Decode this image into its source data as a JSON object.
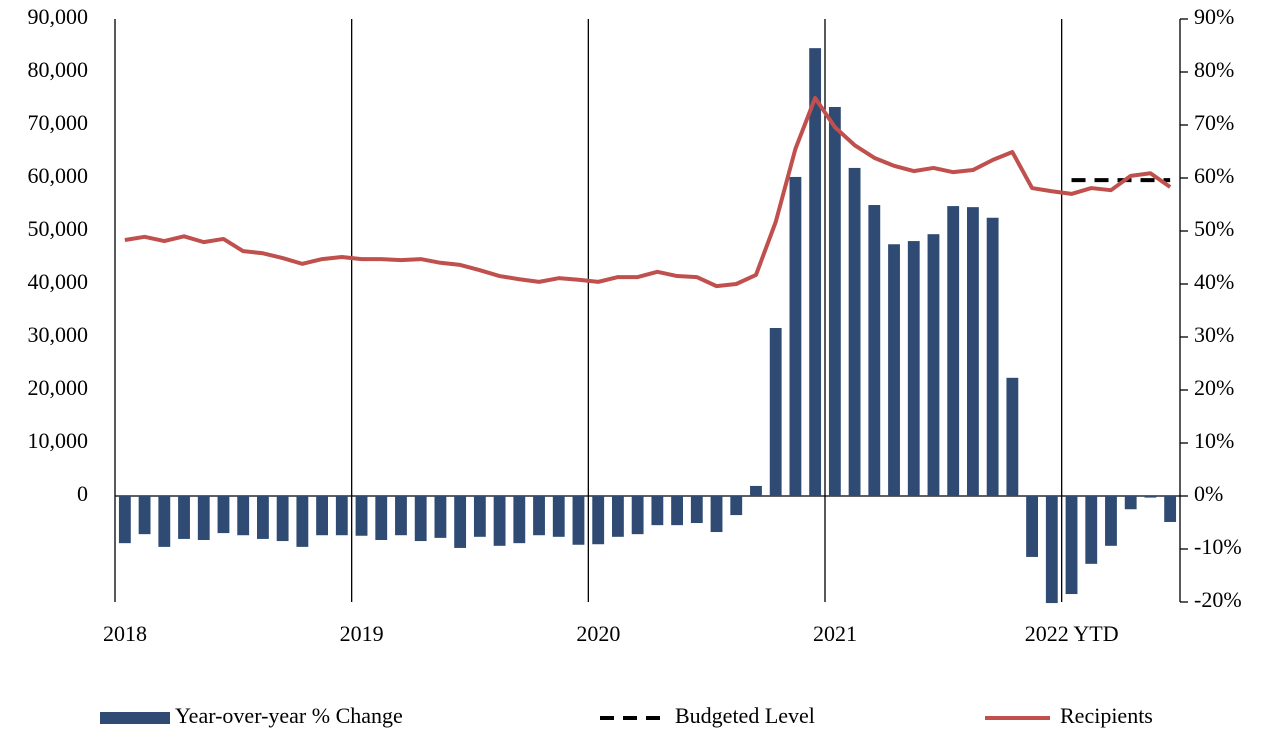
{
  "chart_data": {
    "type": "bar-line",
    "xticks": [
      {
        "value": 0,
        "label": "2018"
      },
      {
        "value": 12,
        "label": "2019"
      },
      {
        "value": 24,
        "label": "2020"
      },
      {
        "value": 36,
        "label": "2021"
      },
      {
        "value": 48,
        "label": "2022 YTD"
      }
    ],
    "xlim": [
      0,
      54
    ],
    "ylim": [
      -20000,
      90000
    ],
    "yticks": [
      0,
      {
        "value": 10000,
        "label": "10,000"
      },
      {
        "value": 20000,
        "label": "20,000"
      },
      {
        "value": 30000,
        "label": "30,000"
      },
      {
        "value": 40000,
        "label": "40,000"
      },
      {
        "value": 50000,
        "label": "50,000"
      },
      {
        "value": 60000,
        "label": "60,000"
      },
      {
        "value": 70000,
        "label": "70,000"
      },
      {
        "value": 80000,
        "label": "80,000"
      },
      {
        "value": 90000,
        "label": "90,000"
      }
    ],
    "y2lim": [
      -20,
      90
    ],
    "y2ticks": [
      {
        "value": -20,
        "label": "-20%"
      },
      {
        "value": -10,
        "label": "-10%"
      },
      {
        "value": 0,
        "label": "0%"
      },
      {
        "value": 10,
        "label": "10%"
      },
      {
        "value": 20,
        "label": "20%"
      },
      {
        "value": 30,
        "label": "30%"
      },
      {
        "value": 40,
        "label": "40%"
      },
      {
        "value": 50,
        "label": "50%"
      },
      {
        "value": 60,
        "label": "60%"
      },
      {
        "value": 70,
        "label": "70%"
      },
      {
        "value": 80,
        "label": "80%"
      },
      {
        "value": 90,
        "label": "90%"
      }
    ],
    "series": [
      {
        "name": "Year-over-year % Change",
        "kind": "bar",
        "axis": "y2",
        "color": "#2f4b73",
        "values": [
          -8.9,
          -7.2,
          -9.6,
          -8.1,
          -8.3,
          -7.0,
          -7.4,
          -8.1,
          -8.5,
          -9.6,
          -7.4,
          -7.4,
          -7.5,
          -8.3,
          -7.4,
          -8.5,
          -7.9,
          -9.8,
          -7.7,
          -9.4,
          -8.9,
          -7.4,
          -7.7,
          -9.2,
          -9.1,
          -7.7,
          -7.2,
          -5.5,
          -5.5,
          -5.1,
          -6.8,
          -3.6,
          1.9,
          31.7,
          60.2,
          84.5,
          73.4,
          61.9,
          54.9,
          47.5,
          48.1,
          49.4,
          54.7,
          54.5,
          52.5,
          22.3,
          -11.5,
          -20.2,
          -18.5,
          -12.8,
          -9.4,
          -2.5,
          -0.3,
          -4.9
        ]
      },
      {
        "name": "Budgeted Level",
        "kind": "line",
        "dashed": true,
        "color": "#000000",
        "values": [
          null,
          null,
          null,
          null,
          null,
          null,
          null,
          null,
          null,
          null,
          null,
          null,
          null,
          null,
          null,
          null,
          null,
          null,
          null,
          null,
          null,
          null,
          null,
          null,
          null,
          null,
          null,
          null,
          null,
          null,
          null,
          null,
          null,
          null,
          null,
          null,
          null,
          null,
          null,
          null,
          null,
          null,
          null,
          null,
          null,
          null,
          null,
          null,
          59600,
          59600,
          59600,
          59600,
          59600,
          59600
        ]
      },
      {
        "name": "Recipients",
        "kind": "line",
        "color": "#c0504d",
        "values": [
          48300,
          48900,
          48100,
          49000,
          47900,
          48500,
          46200,
          45800,
          44900,
          43800,
          44700,
          45100,
          44700,
          44700,
          44500,
          44700,
          44000,
          43600,
          42600,
          41500,
          40900,
          40400,
          41100,
          40800,
          40400,
          41300,
          41300,
          42300,
          41500,
          41300,
          39600,
          40000,
          41700,
          51700,
          65500,
          75100,
          69600,
          66200,
          63800,
          62300,
          61300,
          61900,
          61100,
          61500,
          63400,
          64900,
          58100,
          57500,
          57000,
          58100,
          57700,
          60400,
          60900,
          58300
        ]
      }
    ]
  }
}
